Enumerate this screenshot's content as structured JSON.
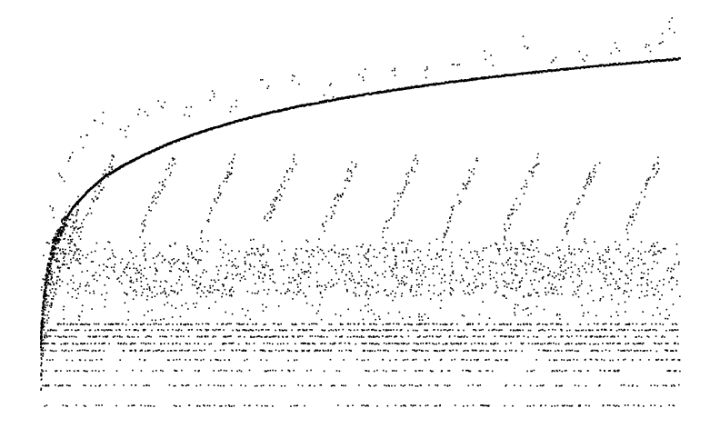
{
  "chart_data": {
    "type": "scatter",
    "title": "",
    "xlabel": "",
    "ylabel": "",
    "axes_visible": false,
    "grid": false,
    "legend": "none",
    "marker_color": "#000000",
    "background": "#ffffff",
    "xlim": [
      0,
      1000
    ],
    "ylim": [
      0,
      1000
    ],
    "series": [
      {
        "role": "main-curve",
        "x": [
          0,
          2,
          5,
          10,
          20,
          35,
          50,
          75,
          100,
          130,
          160,
          200,
          250,
          300,
          350,
          400,
          450,
          500,
          550,
          600,
          650,
          700,
          750,
          800,
          850,
          900,
          950,
          1000
        ],
        "y": [
          190,
          240,
          300,
          360,
          430,
          490,
          530,
          575,
          610,
          640,
          665,
          695,
          725,
          750,
          772,
          790,
          806,
          820,
          833,
          845,
          856,
          866,
          875,
          884,
          892,
          900,
          907,
          914
        ]
      },
      {
        "role": "scattered-above-curve",
        "x": [
          20,
          35,
          50,
          70,
          90,
          130,
          160,
          190,
          230,
          270,
          300,
          350,
          400,
          450,
          500,
          550,
          600,
          650,
          700,
          760,
          800,
          850,
          900,
          950,
          975,
          990
        ],
        "y": [
          520,
          600,
          660,
          700,
          760,
          730,
          770,
          800,
          780,
          820,
          790,
          840,
          860,
          835,
          875,
          890,
          880,
          905,
          915,
          960,
          900,
          925,
          945,
          935,
          970,
          1000
        ]
      },
      {
        "role": "v-band-middle",
        "x": [
          40,
          80,
          120,
          160,
          210,
          250,
          300,
          350,
          400,
          450,
          500,
          550,
          600,
          650,
          700,
          750,
          800,
          850,
          900,
          950,
          980
        ],
        "y": [
          560,
          520,
          500,
          540,
          510,
          580,
          530,
          560,
          590,
          520,
          600,
          570,
          540,
          610,
          550,
          580,
          600,
          560,
          590,
          610,
          550
        ]
      },
      {
        "role": "dense-band-middle",
        "x": [
          5,
          30,
          60,
          90,
          120,
          160,
          200,
          240,
          280,
          320,
          360,
          400,
          440,
          480,
          520,
          560,
          600,
          640,
          680,
          720,
          760,
          800,
          840,
          880,
          920,
          960,
          995
        ],
        "y": [
          400,
          380,
          395,
          370,
          385,
          390,
          375,
          395,
          380,
          370,
          385,
          390,
          375,
          400,
          385,
          395,
          380,
          370,
          390,
          385,
          395,
          375,
          380,
          390,
          385,
          400,
          385
        ]
      },
      {
        "role": "low-bands",
        "x": [
          10,
          40,
          80,
          120,
          160,
          200,
          260,
          300,
          340,
          400,
          460,
          520,
          580,
          640,
          700,
          760,
          820,
          880,
          940,
          990
        ],
        "y": [
          230,
          200,
          160,
          100,
          60,
          230,
          200,
          160,
          100,
          60,
          230,
          200,
          160,
          100,
          60,
          230,
          200,
          160,
          100,
          60
        ]
      }
    ]
  }
}
